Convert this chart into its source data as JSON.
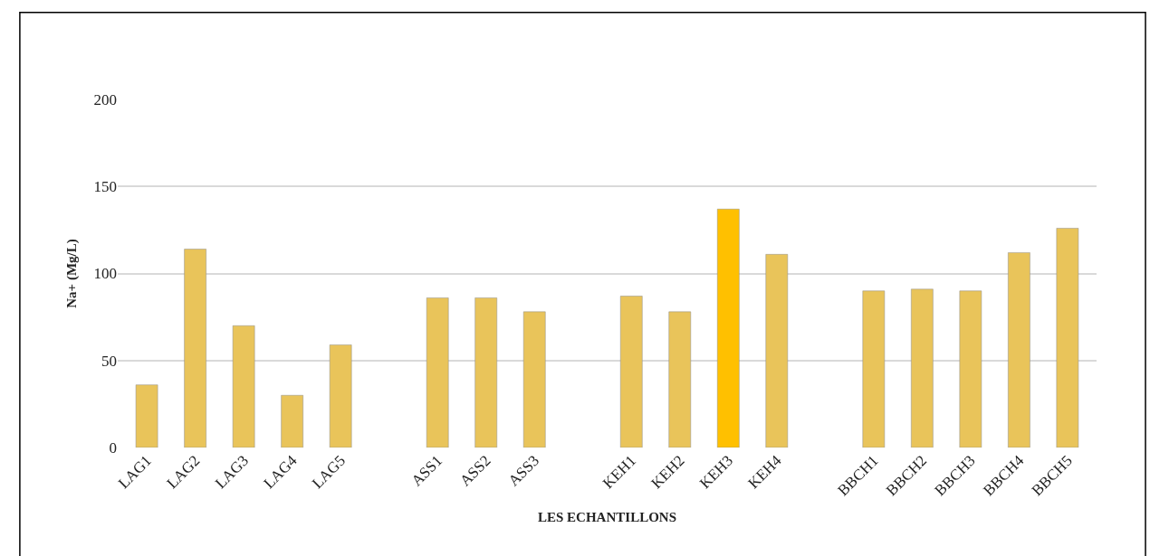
{
  "chart_data": {
    "type": "bar",
    "xlabel": "LES ECHANTILLONS",
    "ylabel": "Na+ (Mg/L)",
    "categories": [
      "LAG1",
      "LAG2",
      "LAG3",
      "LAG4",
      "LAG5",
      null,
      "ASS1",
      "ASS2",
      "ASS3",
      null,
      "KEH1",
      "KEH2",
      "KEH3",
      "KEH4",
      null,
      "BBCH1",
      "BBCH2",
      "BBCH3",
      "BBCH4",
      "BBCH5"
    ],
    "values": [
      36,
      114,
      70,
      30,
      59,
      null,
      86,
      86,
      78,
      null,
      87,
      78,
      137,
      111,
      null,
      90,
      91,
      90,
      112,
      126
    ],
    "colors": [
      "#e9c45a",
      "#e9c45a",
      "#e9c45a",
      "#e9c45a",
      "#e9c45a",
      null,
      "#e9c45a",
      "#e9c45a",
      "#e9c45a",
      null,
      "#e9c45a",
      "#e9c45a",
      "#ffc000",
      "#e9c45a",
      null,
      "#e9c45a",
      "#e9c45a",
      "#e9c45a",
      "#e9c45a",
      "#e9c45a"
    ],
    "ylim": [
      0,
      200
    ],
    "yticks": [
      0,
      50,
      100,
      150,
      200
    ],
    "grid": "y"
  }
}
